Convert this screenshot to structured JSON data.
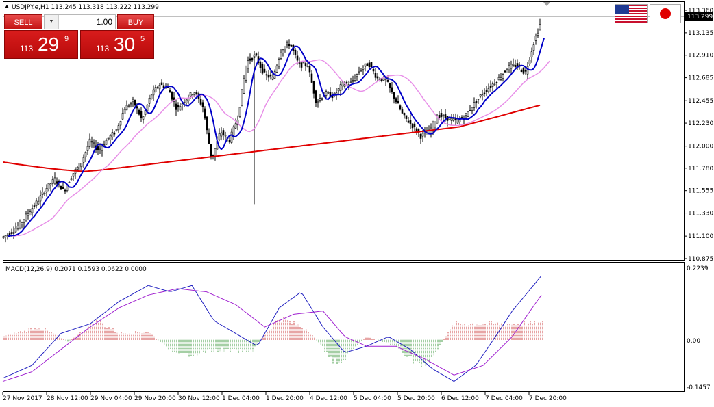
{
  "header": {
    "title": "USDJPY.e,H1  113.245 113.318 113.222 113.299"
  },
  "trade_panel": {
    "sell_label": "SELL",
    "buy_label": "BUY",
    "lot_value": "1.00",
    "lot_arrow_icon": "chevron-down-icon",
    "sell_price": {
      "prefix": "113",
      "big": "29",
      "sup": "9"
    },
    "buy_price": {
      "prefix": "113",
      "big": "30",
      "sup": "5"
    }
  },
  "flags": [
    "us-flag-icon",
    "japan-flag-icon"
  ],
  "price_axis": {
    "labels": [
      "113.360",
      "113.135",
      "112.910",
      "112.685",
      "112.455",
      "112.230",
      "112.000",
      "111.780",
      "111.555",
      "111.330",
      "111.100",
      "110.875"
    ],
    "current_price": "113.299"
  },
  "macd": {
    "title": "MACD(12,26,9) 0.2071 0.1593 0.0622 0.0000",
    "axis_labels": [
      "0.2239",
      "0.00",
      "-0.1457"
    ]
  },
  "time_axis": {
    "labels": [
      "27 Nov 2017",
      "28 Nov 12:00",
      "29 Nov 04:00",
      "29 Nov 20:00",
      "30 Nov 12:00",
      "1 Dec 04:00",
      "1 Dec 20:00",
      "4 Dec 12:00",
      "5 Dec 04:00",
      "5 Dec 20:00",
      "6 Dec 12:00",
      "7 Dec 04:00",
      "7 Dec 20:00"
    ]
  },
  "colors": {
    "fast_ma": "#0000c8",
    "mid_ma": "#e890e8",
    "slow_ma": "#e00000",
    "macd_pos": "#c01010",
    "macd_neg": "#108010",
    "signal": "#a020d0",
    "sell_buy": "#d01818"
  },
  "chart_data": {
    "type": "candlestick",
    "symbol": "USDJPY.e",
    "timeframe": "H1",
    "ohlc_current": {
      "open": 113.245,
      "high": 113.318,
      "low": 113.222,
      "close": 113.299
    },
    "ylim": [
      110.875,
      113.36
    ],
    "close_path": [
      [
        0,
        111.09
      ],
      [
        10,
        111.14
      ],
      [
        20,
        111.22
      ],
      [
        30,
        111.34
      ],
      [
        40,
        111.45
      ],
      [
        50,
        111.58
      ],
      [
        60,
        111.67
      ],
      [
        70,
        111.55
      ],
      [
        80,
        111.72
      ],
      [
        90,
        111.83
      ],
      [
        100,
        112.05
      ],
      [
        110,
        111.96
      ],
      [
        120,
        112.07
      ],
      [
        130,
        112.15
      ],
      [
        140,
        112.38
      ],
      [
        150,
        112.45
      ],
      [
        160,
        112.26
      ],
      [
        170,
        112.51
      ],
      [
        180,
        112.62
      ],
      [
        190,
        112.58
      ],
      [
        200,
        112.37
      ],
      [
        210,
        112.47
      ],
      [
        220,
        112.55
      ],
      [
        230,
        112.39
      ],
      [
        240,
        111.86
      ],
      [
        250,
        112.15
      ],
      [
        260,
        112.05
      ],
      [
        270,
        112.29
      ],
      [
        280,
        112.84
      ],
      [
        290,
        112.91
      ],
      [
        300,
        112.72
      ],
      [
        310,
        112.68
      ],
      [
        320,
        112.97
      ],
      [
        330,
        113.03
      ],
      [
        340,
        112.81
      ],
      [
        350,
        112.82
      ],
      [
        360,
        112.44
      ],
      [
        370,
        112.53
      ],
      [
        380,
        112.5
      ],
      [
        390,
        112.62
      ],
      [
        400,
        112.63
      ],
      [
        410,
        112.76
      ],
      [
        420,
        112.83
      ],
      [
        430,
        112.68
      ],
      [
        440,
        112.66
      ],
      [
        450,
        112.48
      ],
      [
        460,
        112.3
      ],
      [
        470,
        112.21
      ],
      [
        480,
        112.1
      ],
      [
        490,
        112.15
      ],
      [
        500,
        112.31
      ],
      [
        510,
        112.28
      ],
      [
        520,
        112.25
      ],
      [
        530,
        112.29
      ],
      [
        540,
        112.41
      ],
      [
        550,
        112.52
      ],
      [
        560,
        112.6
      ],
      [
        570,
        112.68
      ],
      [
        580,
        112.79
      ],
      [
        590,
        112.81
      ],
      [
        600,
        112.73
      ],
      [
        610,
        113.04
      ],
      [
        620,
        113.3
      ]
    ],
    "macd": {
      "ylim": [
        -0.1457,
        0.2239
      ],
      "histogram_path": [
        [
          0,
          0.01
        ],
        [
          50,
          0.04
        ],
        [
          90,
          -0.005
        ],
        [
          130,
          0.06
        ],
        [
          160,
          0.02
        ],
        [
          200,
          0.025
        ],
        [
          240,
          -0.05
        ],
        [
          300,
          -0.03
        ],
        [
          340,
          -0.04
        ],
        [
          380,
          0.07
        ],
        [
          420,
          0.03
        ],
        [
          460,
          -0.08
        ],
        [
          500,
          0.01
        ],
        [
          540,
          -0.02
        ],
        [
          580,
          -0.09
        ],
        [
          620,
          0.05
        ],
        [
          660,
          0.05
        ],
        [
          700,
          0.05
        ]
      ],
      "macd_path": [
        [
          0,
          -0.12
        ],
        [
          40,
          -0.08
        ],
        [
          80,
          0.02
        ],
        [
          120,
          0.05
        ],
        [
          160,
          0.12
        ],
        [
          200,
          0.17
        ],
        [
          230,
          0.15
        ],
        [
          260,
          0.17
        ],
        [
          290,
          0.06
        ],
        [
          320,
          0.02
        ],
        [
          350,
          -0.02
        ],
        [
          380,
          0.1
        ],
        [
          410,
          0.15
        ],
        [
          440,
          0.04
        ],
        [
          470,
          -0.04
        ],
        [
          500,
          -0.02
        ],
        [
          530,
          0.01
        ],
        [
          560,
          -0.03
        ],
        [
          590,
          -0.09
        ],
        [
          620,
          -0.13
        ],
        [
          650,
          -0.08
        ],
        [
          680,
          0.02
        ],
        [
          700,
          0.09
        ],
        [
          740,
          0.2
        ]
      ],
      "signal_path": [
        [
          0,
          -0.13
        ],
        [
          40,
          -0.1
        ],
        [
          80,
          -0.03
        ],
        [
          120,
          0.04
        ],
        [
          160,
          0.1
        ],
        [
          200,
          0.14
        ],
        [
          240,
          0.16
        ],
        [
          280,
          0.15
        ],
        [
          320,
          0.11
        ],
        [
          360,
          0.04
        ],
        [
          400,
          0.08
        ],
        [
          440,
          0.09
        ],
        [
          470,
          0.01
        ],
        [
          500,
          -0.02
        ],
        [
          540,
          -0.02
        ],
        [
          580,
          -0.06
        ],
        [
          620,
          -0.11
        ],
        [
          660,
          -0.08
        ],
        [
          700,
          0.01
        ],
        [
          740,
          0.14
        ]
      ]
    }
  }
}
